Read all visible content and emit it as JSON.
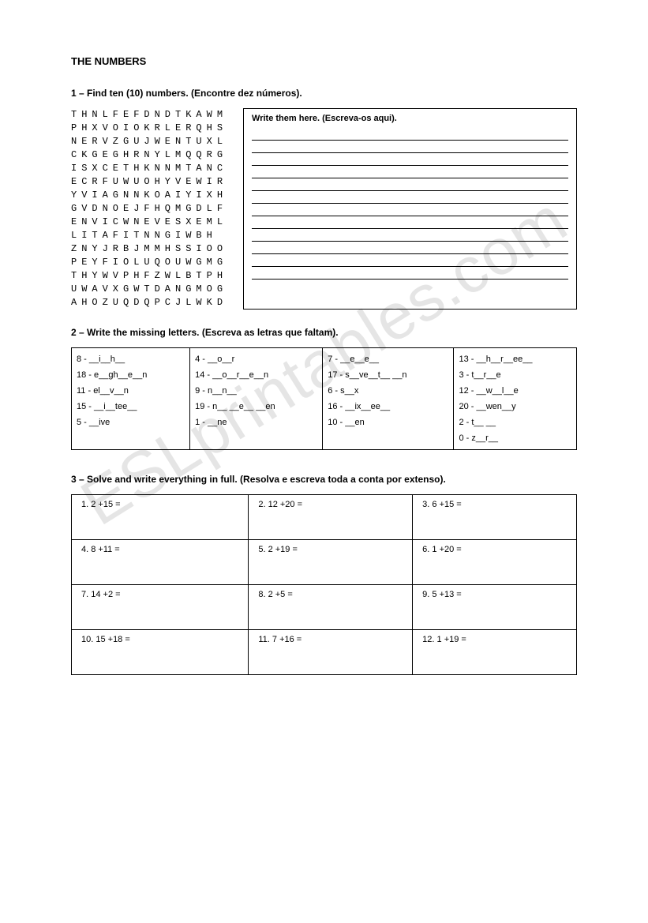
{
  "title": "THE NUMBERS",
  "watermark": "ESLprintables.com",
  "section1": {
    "heading": "1 – Find ten (10) numbers. (Encontre dez números).",
    "grid": [
      "THNLFEFDNDTKAWM",
      "PHXVOIOKRLERQHS",
      "NERVZGUJWENTUXL",
      "CKGEGHRNYLMQQRG",
      "ISXCETHKNNMTANC",
      "ECRFUWUOHYVEWIR",
      "YVIAGNNKOAIYIXH",
      "GVDNOEJFHQMGDLF",
      "ENVICWNEVESXEML",
      "LITAFITNNGIWBH",
      "ZNYJRBJMMHSSIOO",
      "PEYFIOLUQOUWGMG",
      "THYWVPHFZWLBTPH",
      "UWAVXGWTDANGMOG",
      "AHOZUQDQPCJLWKD"
    ],
    "writeBox": {
      "title": "Write them here. (Escreva-os aqui).",
      "lineCount": 12
    }
  },
  "section2": {
    "heading": "2 – Write the missing letters. (Escreva as letras que faltam).",
    "columns": [
      [
        "8 - __i__h__",
        "18 - e__gh__e__n",
        "11 - el__v__n",
        "15 - __i__tee__",
        "5 - __ive"
      ],
      [
        "4 - __o__r",
        "14 - __o__r__e__n",
        "9 - n__n__",
        "19 - n__ __e__ __en",
        "1 - __ne"
      ],
      [
        "7 - __e__e__",
        "17 - s__ve__t__ __n",
        "6 - s__x",
        "16 - __ix__ee__",
        "10 - __en"
      ],
      [
        "13 - __h__r__ee__",
        "3 - t__r__e",
        "12 - __w__l__e",
        "20 - __wen__y",
        "2 - t__ __",
        "0 - z__r__"
      ]
    ]
  },
  "section3": {
    "heading": "3 – Solve and write everything in full. (Resolva e escreva toda a conta por extenso).",
    "items": [
      "1.   2 +15 =",
      "2.   12 +20 =",
      "3.   6 +15 =",
      "4.   8 +11 =",
      "5.   2 +19 =",
      "6.   1 +20 =",
      "7.   14 +2 =",
      "8.   2 +5 =",
      "9.   5 +13 =",
      "10.   15 +18 =",
      "11.   7 +16 =",
      "12.   1 +19 ="
    ]
  }
}
